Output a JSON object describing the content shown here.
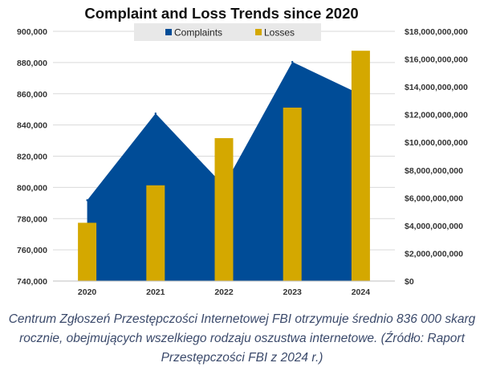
{
  "chart_data": {
    "type": "area",
    "title": "Complaint and Loss Trends since 2020",
    "categories": [
      "2020",
      "2021",
      "2022",
      "2023",
      "2024"
    ],
    "series": [
      {
        "name": "Complaints",
        "type": "area",
        "axis": "left",
        "color": "#004c97",
        "values": [
          791790,
          847376,
          800944,
          880418,
          859532
        ]
      },
      {
        "name": "Losses",
        "type": "bar",
        "axis": "right",
        "color": "#d4a800",
        "values": [
          4200000000,
          6900000000,
          10300000000,
          12500000000,
          16600000000
        ]
      }
    ],
    "y_left": {
      "min": 740000,
      "max": 900000,
      "ticks": [
        "740,000",
        "760,000",
        "780,000",
        "800,000",
        "820,000",
        "840,000",
        "860,000",
        "880,000",
        "900,000"
      ]
    },
    "y_right": {
      "min": 0,
      "max": 18000000000,
      "ticks": [
        "$0",
        "$2,000,000,000",
        "$4,000,000,000",
        "$6,000,000,000",
        "$8,000,000,000",
        "$10,000,000,000",
        "$12,000,000,000",
        "$14,000,000,000",
        "$16,000,000,000",
        "$18,000,000,000"
      ]
    },
    "legend_position": "top",
    "grid": true
  },
  "caption": "Centrum Zgłoszeń Przestępczości Internetowej FBI otrzymuje średnio 836 000 skarg rocznie, obejmujących wszelkiego rodzaju oszustwa internetowe. (Źródło: Raport Przestępczości FBI z 2024 r.)"
}
